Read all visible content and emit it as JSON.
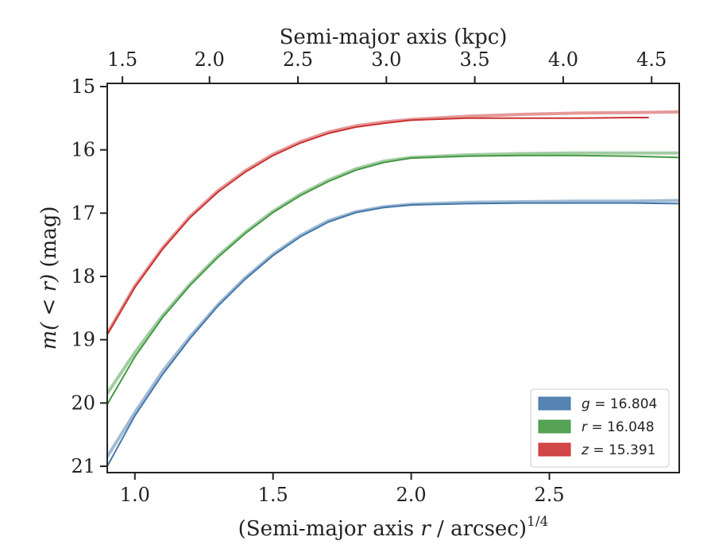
{
  "chart_data": {
    "type": "line",
    "title": "",
    "xlabel": "(Semi-major axis r / arcsec)",
    "xlabel_parts": {
      "pre": "(Semi-major axis ",
      "var": "r",
      "post": " / arcsec)",
      "sup": "1/4"
    },
    "ylabel": "m(<r) (mag)",
    "ylabel_parts": {
      "func": "m",
      "arg": "( < r)",
      "unit": " (mag)"
    },
    "top_xlabel": "Semi-major axis (kpc)",
    "xlim": [
      0.9,
      2.97
    ],
    "ylim": [
      21.1,
      14.95
    ],
    "y_inverted": true,
    "x_ticks": [
      1.0,
      1.5,
      2.0,
      2.5
    ],
    "x_tick_labels": [
      "1.0",
      "1.5",
      "2.0",
      "2.5"
    ],
    "y_ticks": [
      15,
      16,
      17,
      18,
      19,
      20,
      21
    ],
    "y_tick_labels": [
      "15",
      "16",
      "17",
      "18",
      "19",
      "20",
      "21"
    ],
    "top_ticks_at_x": [
      0.955,
      1.27,
      1.59,
      1.91,
      2.23,
      2.55,
      2.87
    ],
    "top_tick_labels": [
      "1.5",
      "2.0",
      "2.5",
      "3.0",
      "3.5",
      "4.0",
      "4.5"
    ],
    "grid": false,
    "legend_position": "lower-right",
    "series": [
      {
        "name": "g",
        "legend_var": "g",
        "legend_value": "= 16.804",
        "color": "#4477aa",
        "model": {
          "x": [
            0.9,
            1.0,
            1.1,
            1.2,
            1.3,
            1.4,
            1.5,
            1.6,
            1.7,
            1.8,
            1.9,
            2.0,
            2.2,
            2.4,
            2.6,
            2.8,
            2.97
          ],
          "y": [
            20.85,
            20.15,
            19.5,
            18.95,
            18.45,
            18.02,
            17.65,
            17.35,
            17.12,
            16.98,
            16.9,
            16.86,
            16.83,
            16.82,
            16.81,
            16.81,
            16.8
          ]
        },
        "data": {
          "x": [
            0.9,
            1.0,
            1.1,
            1.2,
            1.3,
            1.4,
            1.5,
            1.6,
            1.7,
            1.8,
            1.9,
            2.0,
            2.2,
            2.4,
            2.6,
            2.8,
            2.97
          ],
          "y": [
            21.0,
            20.2,
            19.55,
            18.98,
            18.47,
            18.04,
            17.67,
            17.37,
            17.14,
            16.99,
            16.91,
            16.87,
            16.85,
            16.84,
            16.84,
            16.84,
            16.85
          ]
        }
      },
      {
        "name": "r",
        "legend_var": "r",
        "legend_value": "= 16.048",
        "color": "#449944",
        "model": {
          "x": [
            0.9,
            1.0,
            1.1,
            1.2,
            1.3,
            1.4,
            1.5,
            1.6,
            1.7,
            1.8,
            1.9,
            2.0,
            2.2,
            2.4,
            2.6,
            2.8,
            2.97
          ],
          "y": [
            19.85,
            19.2,
            18.62,
            18.12,
            17.68,
            17.3,
            16.97,
            16.7,
            16.48,
            16.3,
            16.18,
            16.12,
            16.08,
            16.06,
            16.05,
            16.05,
            16.05
          ]
        },
        "data": {
          "x": [
            0.9,
            1.0,
            1.1,
            1.2,
            1.3,
            1.4,
            1.5,
            1.6,
            1.7,
            1.8,
            1.9,
            2.0,
            2.2,
            2.4,
            2.6,
            2.8,
            2.97
          ],
          "y": [
            20.02,
            19.27,
            18.65,
            18.14,
            17.7,
            17.32,
            16.99,
            16.72,
            16.5,
            16.32,
            16.2,
            16.13,
            16.1,
            16.09,
            16.09,
            16.1,
            16.12
          ]
        }
      },
      {
        "name": "z",
        "legend_var": "z",
        "legend_value": "= 15.391",
        "color": "#cc3333",
        "model": {
          "x": [
            0.9,
            1.0,
            1.1,
            1.2,
            1.3,
            1.4,
            1.5,
            1.6,
            1.7,
            1.8,
            1.9,
            2.0,
            2.2,
            2.4,
            2.6,
            2.8,
            2.97
          ],
          "y": [
            18.9,
            18.15,
            17.55,
            17.05,
            16.65,
            16.33,
            16.07,
            15.87,
            15.72,
            15.62,
            15.56,
            15.52,
            15.47,
            15.44,
            15.42,
            15.41,
            15.4
          ]
        },
        "data": {
          "x": [
            0.9,
            1.0,
            1.1,
            1.2,
            1.3,
            1.4,
            1.5,
            1.6,
            1.7,
            1.8,
            1.9,
            2.0,
            2.2,
            2.4,
            2.6,
            2.8,
            2.86
          ],
          "y": [
            18.92,
            18.17,
            17.57,
            17.07,
            16.67,
            16.35,
            16.09,
            15.89,
            15.74,
            15.64,
            15.58,
            15.53,
            15.5,
            15.5,
            15.5,
            15.49,
            15.49
          ]
        }
      }
    ]
  }
}
